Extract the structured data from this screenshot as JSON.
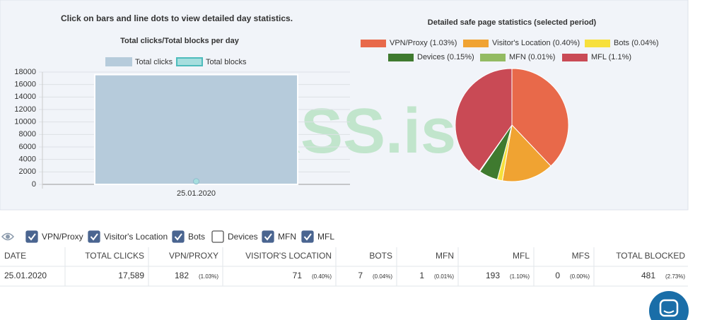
{
  "instructions": "Click on bars and line dots to view detailed day statistics.",
  "watermark": "XSS.is",
  "chart_data": [
    {
      "type": "bar",
      "title": "Total clicks/Total blocks per day",
      "categories": [
        "25.01.2020"
      ],
      "series": [
        {
          "name": "Total clicks",
          "color": "#b6cbdb",
          "values": [
            17589
          ]
        },
        {
          "name": "Total blocks",
          "color": "#a6dede",
          "values": [
            481
          ]
        }
      ],
      "ylim": [
        0,
        18000
      ],
      "yticks": [
        0,
        2000,
        4000,
        6000,
        8000,
        10000,
        12000,
        14000,
        16000,
        18000
      ],
      "grid": true
    },
    {
      "type": "pie",
      "title": "Detailed safe page statistics (selected period)",
      "categories": [
        "VPN/Proxy (1.03%)",
        "Visitor's Location (0.40%)",
        "Bots (0.04%)",
        "Devices (0.15%)",
        "MFN (0.01%)",
        "MFL (1.1%)"
      ],
      "values": [
        182,
        71,
        7,
        26,
        1,
        193
      ],
      "colors": [
        "#e8694a",
        "#f0a332",
        "#f7e03c",
        "#3f7a2f",
        "#93bb62",
        "#c94a55"
      ]
    }
  ],
  "filters": [
    {
      "label": "VPN/Proxy",
      "checked": true
    },
    {
      "label": "Visitor's Location",
      "checked": true
    },
    {
      "label": "Bots",
      "checked": true
    },
    {
      "label": "Devices",
      "checked": false
    },
    {
      "label": "MFN",
      "checked": true
    },
    {
      "label": "MFL",
      "checked": true
    }
  ],
  "table": {
    "header": [
      "DATE",
      "TOTAL CLICKS",
      "VPN/PROXY",
      "VISITOR'S LOCATION",
      "BOTS",
      "MFN",
      "MFL",
      "MFS",
      "TOTAL BLOCKED"
    ],
    "rows": [
      [
        "25.01.2020",
        "17,589",
        [
          "182",
          "(1.03%)"
        ],
        [
          "71",
          "(0.40%)"
        ],
        [
          "7",
          "(0.04%)"
        ],
        [
          "1",
          "(0.01%)"
        ],
        [
          "193",
          "(1.10%)"
        ],
        [
          "0",
          "(0.00%)"
        ],
        [
          "481",
          "(2.73%)"
        ]
      ]
    ]
  }
}
